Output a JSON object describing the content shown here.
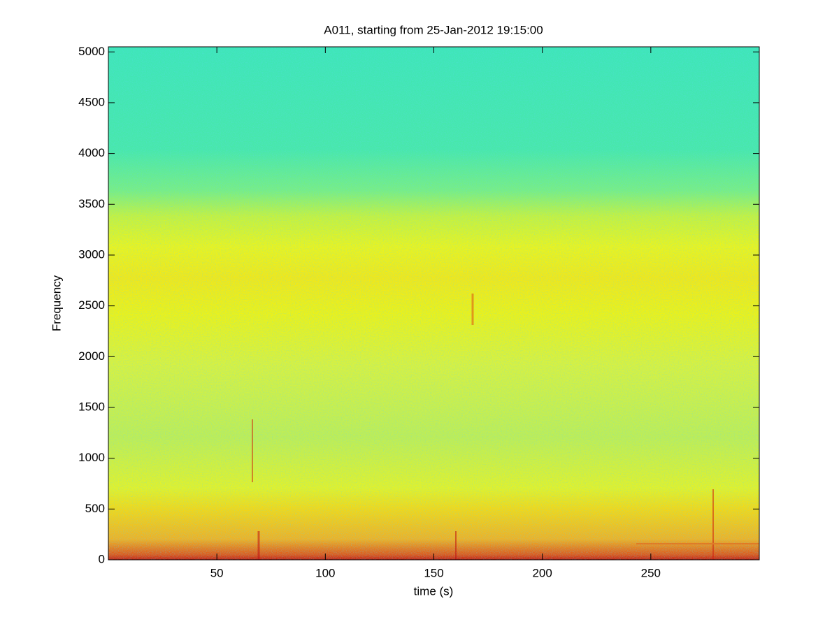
{
  "chart_data": {
    "type": "spectrogram",
    "title": "A011, starting from 25-Jan-2012 19:15:00",
    "xlabel": "time (s)",
    "ylabel": "Frequency",
    "xlim": [
      0,
      300
    ],
    "xticks": [
      50,
      100,
      150,
      200,
      250
    ],
    "ylim": [
      0,
      5050
    ],
    "yticks": [
      0,
      500,
      1000,
      1500,
      2000,
      2500,
      3000,
      3500,
      4000,
      4500,
      5000
    ]
  }
}
